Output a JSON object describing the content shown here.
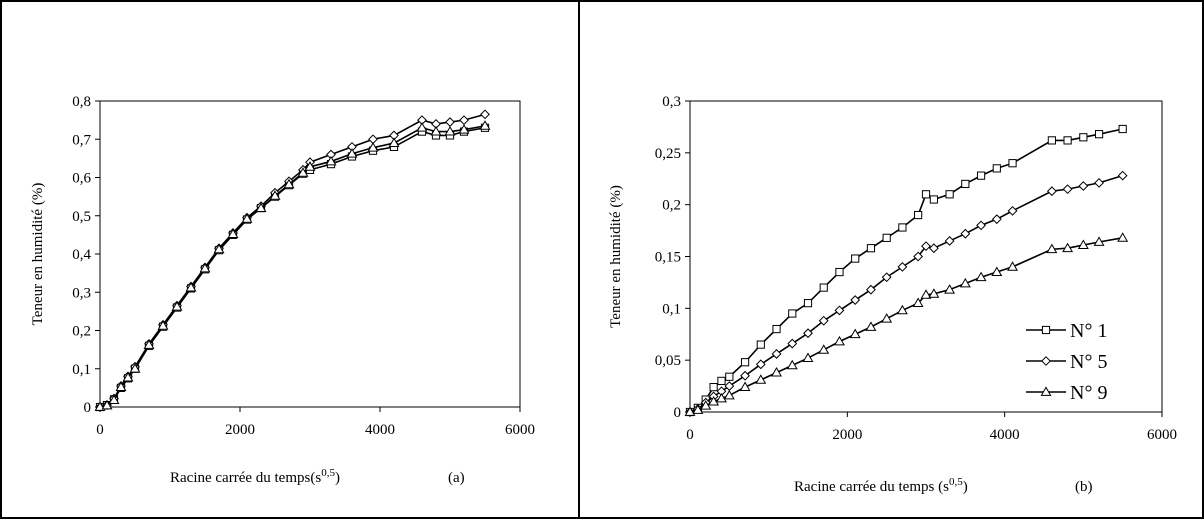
{
  "chart_data": [
    {
      "type": "line",
      "panel": "(a)",
      "xlabel": "Racine carrée du temps(s",
      "xlabel_sup": "0,5",
      "xlabel_close": ")",
      "ylabel": "Teneur en humidité (%)",
      "xlim": [
        0,
        6000
      ],
      "ylim": [
        0,
        0.8
      ],
      "xticks": [
        "0",
        "2000",
        "4000",
        "6000"
      ],
      "yticks": [
        "0",
        "0,1",
        "0,2",
        "0,3",
        "0,4",
        "0,5",
        "0,6",
        "0,7",
        "0,8"
      ],
      "legend": false,
      "series": [
        {
          "marker": "square",
          "x": [
            0,
            100,
            200,
            300,
            400,
            500,
            700,
            900,
            1100,
            1300,
            1500,
            1700,
            1900,
            2100,
            2300,
            2500,
            2700,
            2900,
            3000,
            3300,
            3600,
            3900,
            4200,
            4600,
            4800,
            5000,
            5200,
            5500
          ],
          "y": [
            0,
            0.005,
            0.02,
            0.05,
            0.075,
            0.1,
            0.16,
            0.21,
            0.26,
            0.31,
            0.36,
            0.41,
            0.45,
            0.49,
            0.52,
            0.55,
            0.58,
            0.61,
            0.62,
            0.635,
            0.655,
            0.67,
            0.68,
            0.72,
            0.71,
            0.71,
            0.72,
            0.73
          ]
        },
        {
          "marker": "diamond",
          "x": [
            0,
            100,
            200,
            300,
            400,
            500,
            700,
            900,
            1100,
            1300,
            1500,
            1700,
            1900,
            2100,
            2300,
            2500,
            2700,
            2900,
            3000,
            3300,
            3600,
            3900,
            4200,
            4600,
            4800,
            5000,
            5200,
            5500
          ],
          "y": [
            0,
            0.005,
            0.022,
            0.055,
            0.08,
            0.105,
            0.165,
            0.215,
            0.265,
            0.315,
            0.365,
            0.415,
            0.455,
            0.495,
            0.525,
            0.56,
            0.59,
            0.62,
            0.64,
            0.66,
            0.68,
            0.7,
            0.71,
            0.75,
            0.74,
            0.745,
            0.75,
            0.765
          ]
        },
        {
          "marker": "triangle",
          "x": [
            0,
            100,
            200,
            300,
            400,
            500,
            700,
            900,
            1100,
            1300,
            1500,
            1700,
            1900,
            2100,
            2300,
            2500,
            2700,
            2900,
            3000,
            3300,
            3600,
            3900,
            4200,
            4600,
            4800,
            5000,
            5200,
            5500
          ],
          "y": [
            0,
            0.004,
            0.018,
            0.052,
            0.077,
            0.1,
            0.162,
            0.212,
            0.262,
            0.312,
            0.362,
            0.412,
            0.452,
            0.492,
            0.52,
            0.552,
            0.582,
            0.612,
            0.628,
            0.642,
            0.662,
            0.678,
            0.69,
            0.73,
            0.72,
            0.72,
            0.725,
            0.735
          ]
        }
      ]
    },
    {
      "type": "line",
      "panel": "(b)",
      "xlabel": "Racine carrée du temps (s",
      "xlabel_sup": "0,5",
      "xlabel_close": ")",
      "ylabel": "Teneur en humidité (%)",
      "xlim": [
        0,
        6000
      ],
      "ylim": [
        0,
        0.3
      ],
      "xticks": [
        "0",
        "2000",
        "4000",
        "6000"
      ],
      "yticks": [
        "0",
        "0,05",
        "0,1",
        "0,15",
        "0,2",
        "0,25",
        "0,3"
      ],
      "legend": "right",
      "series": [
        {
          "name": "N° 1",
          "marker": "square",
          "x": [
            0,
            100,
            200,
            300,
            400,
            500,
            700,
            900,
            1100,
            1300,
            1500,
            1700,
            1900,
            2100,
            2300,
            2500,
            2700,
            2900,
            3000,
            3100,
            3300,
            3500,
            3700,
            3900,
            4100,
            4600,
            4800,
            5000,
            5200,
            5500
          ],
          "y": [
            0,
            0.004,
            0.012,
            0.024,
            0.03,
            0.034,
            0.048,
            0.065,
            0.08,
            0.095,
            0.105,
            0.12,
            0.135,
            0.148,
            0.158,
            0.168,
            0.178,
            0.19,
            0.21,
            0.205,
            0.21,
            0.22,
            0.228,
            0.235,
            0.24,
            0.262,
            0.262,
            0.265,
            0.268,
            0.273
          ]
        },
        {
          "name": "N° 5",
          "marker": "diamond",
          "x": [
            0,
            100,
            200,
            300,
            400,
            500,
            700,
            900,
            1100,
            1300,
            1500,
            1700,
            1900,
            2100,
            2300,
            2500,
            2700,
            2900,
            3000,
            3100,
            3300,
            3500,
            3700,
            3900,
            4100,
            4600,
            4800,
            5000,
            5200,
            5500
          ],
          "y": [
            0,
            0.003,
            0.009,
            0.015,
            0.02,
            0.025,
            0.035,
            0.046,
            0.056,
            0.066,
            0.076,
            0.088,
            0.098,
            0.108,
            0.118,
            0.13,
            0.14,
            0.15,
            0.16,
            0.158,
            0.165,
            0.172,
            0.18,
            0.186,
            0.194,
            0.213,
            0.215,
            0.218,
            0.221,
            0.228
          ]
        },
        {
          "name": "N° 9",
          "marker": "triangle",
          "x": [
            0,
            100,
            200,
            300,
            400,
            500,
            700,
            900,
            1100,
            1300,
            1500,
            1700,
            1900,
            2100,
            2300,
            2500,
            2700,
            2900,
            3000,
            3100,
            3300,
            3500,
            3700,
            3900,
            4100,
            4600,
            4800,
            5000,
            5200,
            5500
          ],
          "y": [
            0,
            0.002,
            0.006,
            0.01,
            0.013,
            0.016,
            0.024,
            0.031,
            0.038,
            0.045,
            0.052,
            0.06,
            0.068,
            0.075,
            0.082,
            0.09,
            0.098,
            0.105,
            0.113,
            0.114,
            0.118,
            0.124,
            0.13,
            0.135,
            0.14,
            0.157,
            0.158,
            0.161,
            0.164,
            0.168
          ]
        }
      ]
    }
  ]
}
